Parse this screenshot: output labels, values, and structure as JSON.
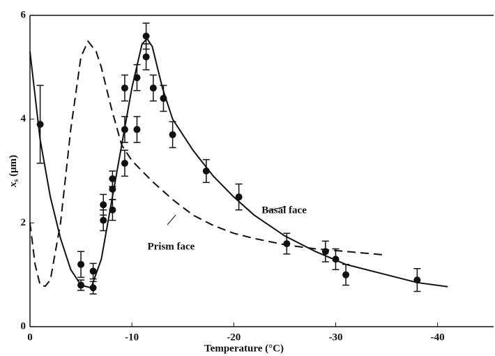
{
  "chart_data": {
    "type": "scatter",
    "x_label": "Temperature (°C)",
    "y_label": "x",
    "y_label_sub": "s",
    "y_label_unit": "(μm)",
    "xlim": [
      0,
      -45.5
    ],
    "ylim": [
      0,
      6
    ],
    "xticks": [
      0,
      -10,
      -20,
      -30,
      -40
    ],
    "yticks": [
      0,
      2,
      4,
      6
    ],
    "color": "#111111",
    "x": [
      -1.0,
      -5.0,
      -5.0,
      -6.2,
      -6.2,
      -7.2,
      -7.2,
      -8.1,
      -8.1,
      -8.1,
      -9.3,
      -9.3,
      -9.3,
      -10.5,
      -10.5,
      -11.4,
      -11.4,
      -12.1,
      -13.1,
      -14.0,
      -17.3,
      -20.5,
      -25.2,
      -29.0,
      -30.0,
      -31.0,
      -38.0
    ],
    "values": [
      3.9,
      1.2,
      0.8,
      1.07,
      0.75,
      2.35,
      2.05,
      2.85,
      2.65,
      2.25,
      4.6,
      3.8,
      3.15,
      4.8,
      3.8,
      5.6,
      5.2,
      4.6,
      4.4,
      3.7,
      3.0,
      2.5,
      1.6,
      1.45,
      1.3,
      1.0,
      0.9
    ],
    "errors": [
      0.75,
      0.25,
      0.1,
      0.15,
      0.12,
      0.2,
      0.2,
      0.15,
      0.2,
      0.2,
      0.25,
      0.25,
      0.25,
      0.25,
      0.25,
      0.25,
      0.25,
      0.25,
      0.25,
      0.25,
      0.22,
      0.25,
      0.2,
      0.2,
      0.2,
      0.2,
      0.22
    ],
    "curves": [
      {
        "name": "Basal face",
        "dashed": false,
        "x": [
          0,
          -1,
          -2,
          -3,
          -4,
          -5,
          -6,
          -7,
          -8,
          -9,
          -10,
          -11,
          -11.5,
          -12,
          -13,
          -14,
          -16,
          -18,
          -20,
          -22,
          -25,
          -28,
          -31,
          -35,
          -38,
          -41
        ],
        "values": [
          5.3,
          3.6,
          2.5,
          1.7,
          1.1,
          0.8,
          0.75,
          1.3,
          2.4,
          3.5,
          4.6,
          5.45,
          5.55,
          5.4,
          4.6,
          4.0,
          3.4,
          2.9,
          2.5,
          2.15,
          1.75,
          1.45,
          1.2,
          1.0,
          0.85,
          0.77
        ]
      },
      {
        "name": "Prism face",
        "dashed": true,
        "x": [
          0,
          -0.5,
          -1,
          -1.5,
          -2,
          -3,
          -4,
          -5,
          -5.7,
          -6.5,
          -7,
          -8,
          -9,
          -10,
          -12,
          -14,
          -16,
          -18,
          -20,
          -22,
          -25,
          -28,
          -31,
          -35
        ],
        "values": [
          2.0,
          1.2,
          0.8,
          0.78,
          0.9,
          2.0,
          3.8,
          5.2,
          5.5,
          5.3,
          5.0,
          4.2,
          3.5,
          3.2,
          2.8,
          2.45,
          2.15,
          1.95,
          1.8,
          1.7,
          1.58,
          1.5,
          1.45,
          1.38
        ]
      }
    ]
  }
}
